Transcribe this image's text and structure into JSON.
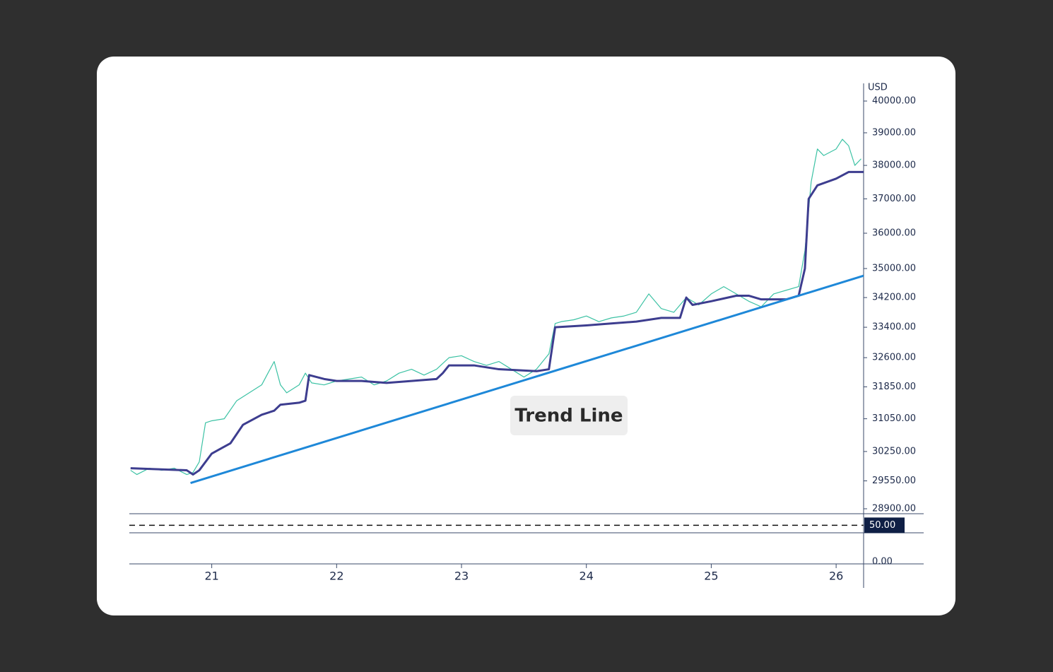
{
  "chart_data": {
    "type": "line",
    "y_unit": "USD",
    "annotation": "Trend Line",
    "log_y": true,
    "xlim": [
      20.34,
      26.22
    ],
    "xticks": [
      21,
      22,
      23,
      24,
      25,
      26
    ],
    "ylim": [
      28900,
      40000
    ],
    "yticks": [
      {
        "value": 28900,
        "label": "28900.00"
      },
      {
        "value": 29550,
        "label": "29550.00"
      },
      {
        "value": 30250,
        "label": "30250.00"
      },
      {
        "value": 31050,
        "label": "31050.00"
      },
      {
        "value": 31850,
        "label": "31850.00"
      },
      {
        "value": 32600,
        "label": "32600.00"
      },
      {
        "value": 33400,
        "label": "33400.00"
      },
      {
        "value": 34200,
        "label": "34200.00"
      },
      {
        "value": 35000,
        "label": "35000.00"
      },
      {
        "value": 36000,
        "label": "36000.00"
      },
      {
        "value": 37000,
        "label": "37000.00"
      },
      {
        "value": 38000,
        "label": "38000.00"
      },
      {
        "value": 39000,
        "label": "39000.00"
      },
      {
        "value": 40000,
        "label": "40000.00"
      }
    ],
    "series": [
      {
        "color": "#3cc2a4",
        "x": [
          20.35,
          20.4,
          20.5,
          20.6,
          20.7,
          20.8,
          20.85,
          20.9,
          20.95,
          21.0,
          21.1,
          21.2,
          21.3,
          21.4,
          21.45,
          21.5,
          21.55,
          21.6,
          21.7,
          21.75,
          21.8,
          21.9,
          22.0,
          22.1,
          22.2,
          22.3,
          22.4,
          22.5,
          22.6,
          22.7,
          22.8,
          22.9,
          23.0,
          23.1,
          23.2,
          23.3,
          23.4,
          23.5,
          23.6,
          23.7,
          23.75,
          23.8,
          23.9,
          24.0,
          24.1,
          24.2,
          24.3,
          24.4,
          24.5,
          24.6,
          24.7,
          24.8,
          24.9,
          25.0,
          25.1,
          25.2,
          25.3,
          25.4,
          25.5,
          25.6,
          25.7,
          25.75,
          25.8,
          25.85,
          25.9,
          26.0,
          26.05,
          26.1,
          26.15,
          26.2
        ],
        "values": [
          29800,
          29700,
          29850,
          29800,
          29850,
          29700,
          29750,
          30000,
          30950,
          31000,
          31050,
          31500,
          31700,
          31900,
          32200,
          32500,
          31900,
          31700,
          31900,
          32200,
          31950,
          31900,
          32000,
          32050,
          32100,
          31900,
          32000,
          32200,
          32300,
          32150,
          32300,
          32600,
          32650,
          32500,
          32400,
          32500,
          32300,
          32100,
          32300,
          32700,
          33500,
          33550,
          33600,
          33700,
          33550,
          33650,
          33700,
          33800,
          34300,
          33900,
          33800,
          34200,
          34000,
          34300,
          34500,
          34300,
          34100,
          33950,
          34300,
          34400,
          34500,
          35500,
          37500,
          38500,
          38300,
          38500,
          38800,
          38600,
          38000,
          38200
        ]
      },
      {
        "color": "#3d3d8f",
        "x": [
          20.35,
          20.8,
          20.85,
          20.9,
          21.0,
          21.15,
          21.25,
          21.4,
          21.5,
          21.55,
          21.7,
          21.75,
          21.78,
          21.9,
          22.0,
          22.2,
          22.4,
          22.6,
          22.8,
          22.85,
          22.9,
          23.1,
          23.3,
          23.6,
          23.7,
          23.75,
          24.0,
          24.2,
          24.4,
          24.6,
          24.75,
          24.8,
          24.85,
          25.0,
          25.2,
          25.3,
          25.4,
          25.6,
          25.7,
          25.75,
          25.78,
          25.85,
          26.0,
          26.1,
          26.22
        ],
        "values": [
          29850,
          29800,
          29700,
          29800,
          30200,
          30450,
          30900,
          31150,
          31250,
          31400,
          31450,
          31500,
          32150,
          32050,
          32000,
          32000,
          31950,
          32000,
          32050,
          32200,
          32400,
          32400,
          32300,
          32250,
          32300,
          33400,
          33450,
          33500,
          33550,
          33650,
          33650,
          34200,
          34000,
          34100,
          34250,
          34250,
          34150,
          34150,
          34250,
          35000,
          37000,
          37400,
          37600,
          37800,
          37800
        ]
      },
      {
        "color": "#1e88d8",
        "x": [
          20.83,
          26.22
        ],
        "values": [
          29500,
          34800
        ]
      }
    ],
    "lower_panel": {
      "ylim": [
        0,
        65
      ],
      "yticks": [
        {
          "value": 0,
          "label": "0.00"
        },
        {
          "value": 50,
          "label": "50.00"
        }
      ]
    }
  }
}
